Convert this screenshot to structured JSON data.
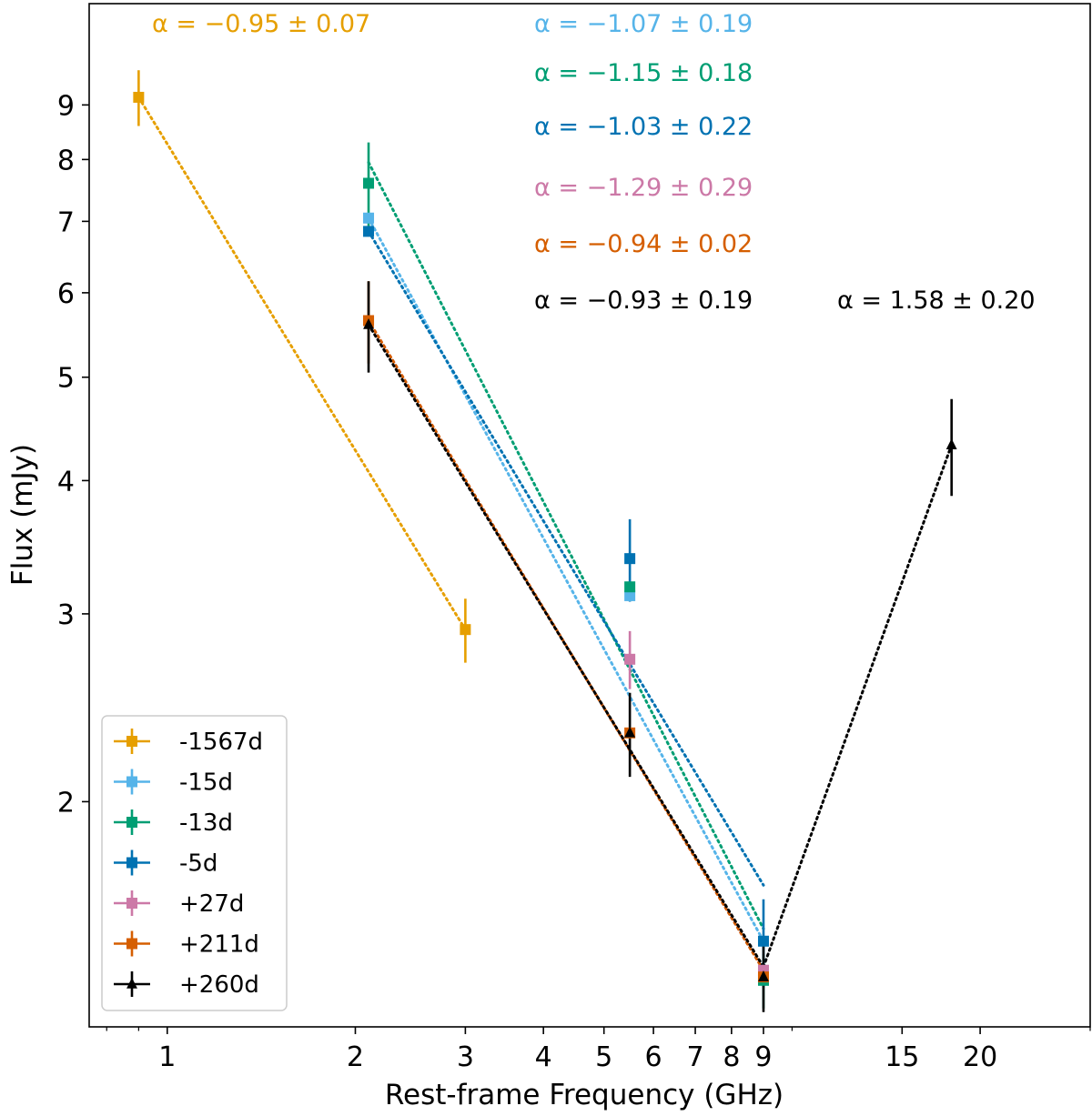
{
  "chart_data": {
    "type": "scatter",
    "title": "",
    "xlabel": "Rest-frame Frequency (GHz)",
    "ylabel": "Flux (mJy)",
    "xscale": "log",
    "yscale": "log",
    "xlim": [
      0.75,
      30
    ],
    "ylim": [
      1.23,
      11.2
    ],
    "legend_position": "lower-left",
    "x_ticks": [
      {
        "value": 1,
        "label": "1"
      },
      {
        "value": 2,
        "label": "2"
      },
      {
        "value": 3,
        "label": "3"
      },
      {
        "value": 4,
        "label": "4"
      },
      {
        "value": 5,
        "label": "5"
      },
      {
        "value": 6,
        "label": "6"
      },
      {
        "value": 7,
        "label": "7"
      },
      {
        "value": 8,
        "label": "8"
      },
      {
        "value": 9,
        "label": "9"
      },
      {
        "value": 15,
        "label": "15"
      },
      {
        "value": 20,
        "label": "20"
      }
    ],
    "y_ticks": [
      {
        "value": 2,
        "label": "2"
      },
      {
        "value": 3,
        "label": "3"
      },
      {
        "value": 4,
        "label": "4"
      },
      {
        "value": 5,
        "label": "5"
      },
      {
        "value": 6,
        "label": "6"
      },
      {
        "value": 7,
        "label": "7"
      },
      {
        "value": 8,
        "label": "8"
      },
      {
        "value": 9,
        "label": "9"
      }
    ],
    "series": [
      {
        "name": "-1567d",
        "color": "#E69F00",
        "marker": "square",
        "points": [
          {
            "x": 0.9,
            "y": 9.15,
            "yerr": 0.55
          },
          {
            "x": 3.0,
            "y": 2.9,
            "yerr": 0.2
          }
        ],
        "fits": [
          {
            "from": [
              0.9,
              9.15
            ],
            "to": [
              3.0,
              2.9
            ],
            "label": "α = −0.95 ± 0.07"
          }
        ]
      },
      {
        "name": "-15d",
        "color": "#56B4E9",
        "marker": "square",
        "points": [
          {
            "x": 2.1,
            "y": 7.05,
            "yerr": 0.0
          },
          {
            "x": 5.5,
            "y": 3.12,
            "yerr": 0.0
          }
        ],
        "fits": [
          {
            "from": [
              2.1,
              7.05
            ],
            "to": [
              9.0,
              1.48
            ],
            "label": "α = −1.07 ± 0.19"
          }
        ]
      },
      {
        "name": "-13d",
        "color": "#009E73",
        "marker": "square",
        "points": [
          {
            "x": 2.1,
            "y": 7.6,
            "yerr": 0.7
          },
          {
            "x": 5.5,
            "y": 3.18,
            "yerr": 0.0
          },
          {
            "x": 9.0,
            "y": 1.36,
            "yerr": 0.08
          }
        ],
        "fits": [
          {
            "from": [
              2.1,
              7.95
            ],
            "to": [
              9.0,
              1.52
            ],
            "label": "α = −1.15 ± 0.18"
          }
        ]
      },
      {
        "name": "-5d",
        "color": "#0072B2",
        "marker": "square",
        "points": [
          {
            "x": 2.1,
            "y": 6.85,
            "yerr": 0.0
          },
          {
            "x": 5.5,
            "y": 3.38,
            "yerr": 0.3
          },
          {
            "x": 9.0,
            "y": 1.48,
            "yerr": 0.14
          }
        ],
        "fits": [
          {
            "from": [
              2.1,
              6.85
            ],
            "to": [
              9.0,
              1.67
            ],
            "label": "α = −1.03 ± 0.22"
          }
        ]
      },
      {
        "name": "+27d",
        "color": "#CC79A7",
        "marker": "square",
        "points": [
          {
            "x": 2.1,
            "y": 5.65,
            "yerr": 0.0
          },
          {
            "x": 5.5,
            "y": 2.72,
            "yerr": 0.17
          },
          {
            "x": 9.0,
            "y": 1.39,
            "yerr": 0.0
          }
        ],
        "fits": [
          {
            "from": [
              2.1,
              5.65
            ],
            "to": [
              9.0,
              1.39
            ],
            "label": "α = −1.29 ± 0.29"
          }
        ]
      },
      {
        "name": "+211d",
        "color": "#D55E00",
        "marker": "square",
        "points": [
          {
            "x": 2.1,
            "y": 5.65,
            "yerr": 0.5
          },
          {
            "x": 5.5,
            "y": 2.32,
            "yerr": 0.0
          },
          {
            "x": 9.0,
            "y": 1.37,
            "yerr": 0.0
          }
        ],
        "fits": [
          {
            "from": [
              2.1,
              5.65
            ],
            "to": [
              9.0,
              1.39
            ],
            "label": "α = −0.94 ± 0.02"
          }
        ]
      },
      {
        "name": "+260d",
        "color": "#000000",
        "marker": "triangle",
        "points": [
          {
            "x": 2.1,
            "y": 5.6,
            "yerr": 0.55
          },
          {
            "x": 5.5,
            "y": 2.32,
            "yerr": 0.21
          },
          {
            "x": 9.0,
            "y": 1.37,
            "yerr": 0.1
          },
          {
            "x": 18.0,
            "y": 4.32,
            "yerr": 0.45
          }
        ],
        "fits": [
          {
            "from": [
              2.1,
              5.6
            ],
            "to": [
              9.0,
              1.4
            ],
            "label": "α = −0.93 ± 0.19"
          },
          {
            "from": [
              9.0,
              1.4
            ],
            "to": [
              18.0,
              4.32
            ],
            "label": "α = 1.58 ± 0.20"
          }
        ]
      }
    ]
  }
}
